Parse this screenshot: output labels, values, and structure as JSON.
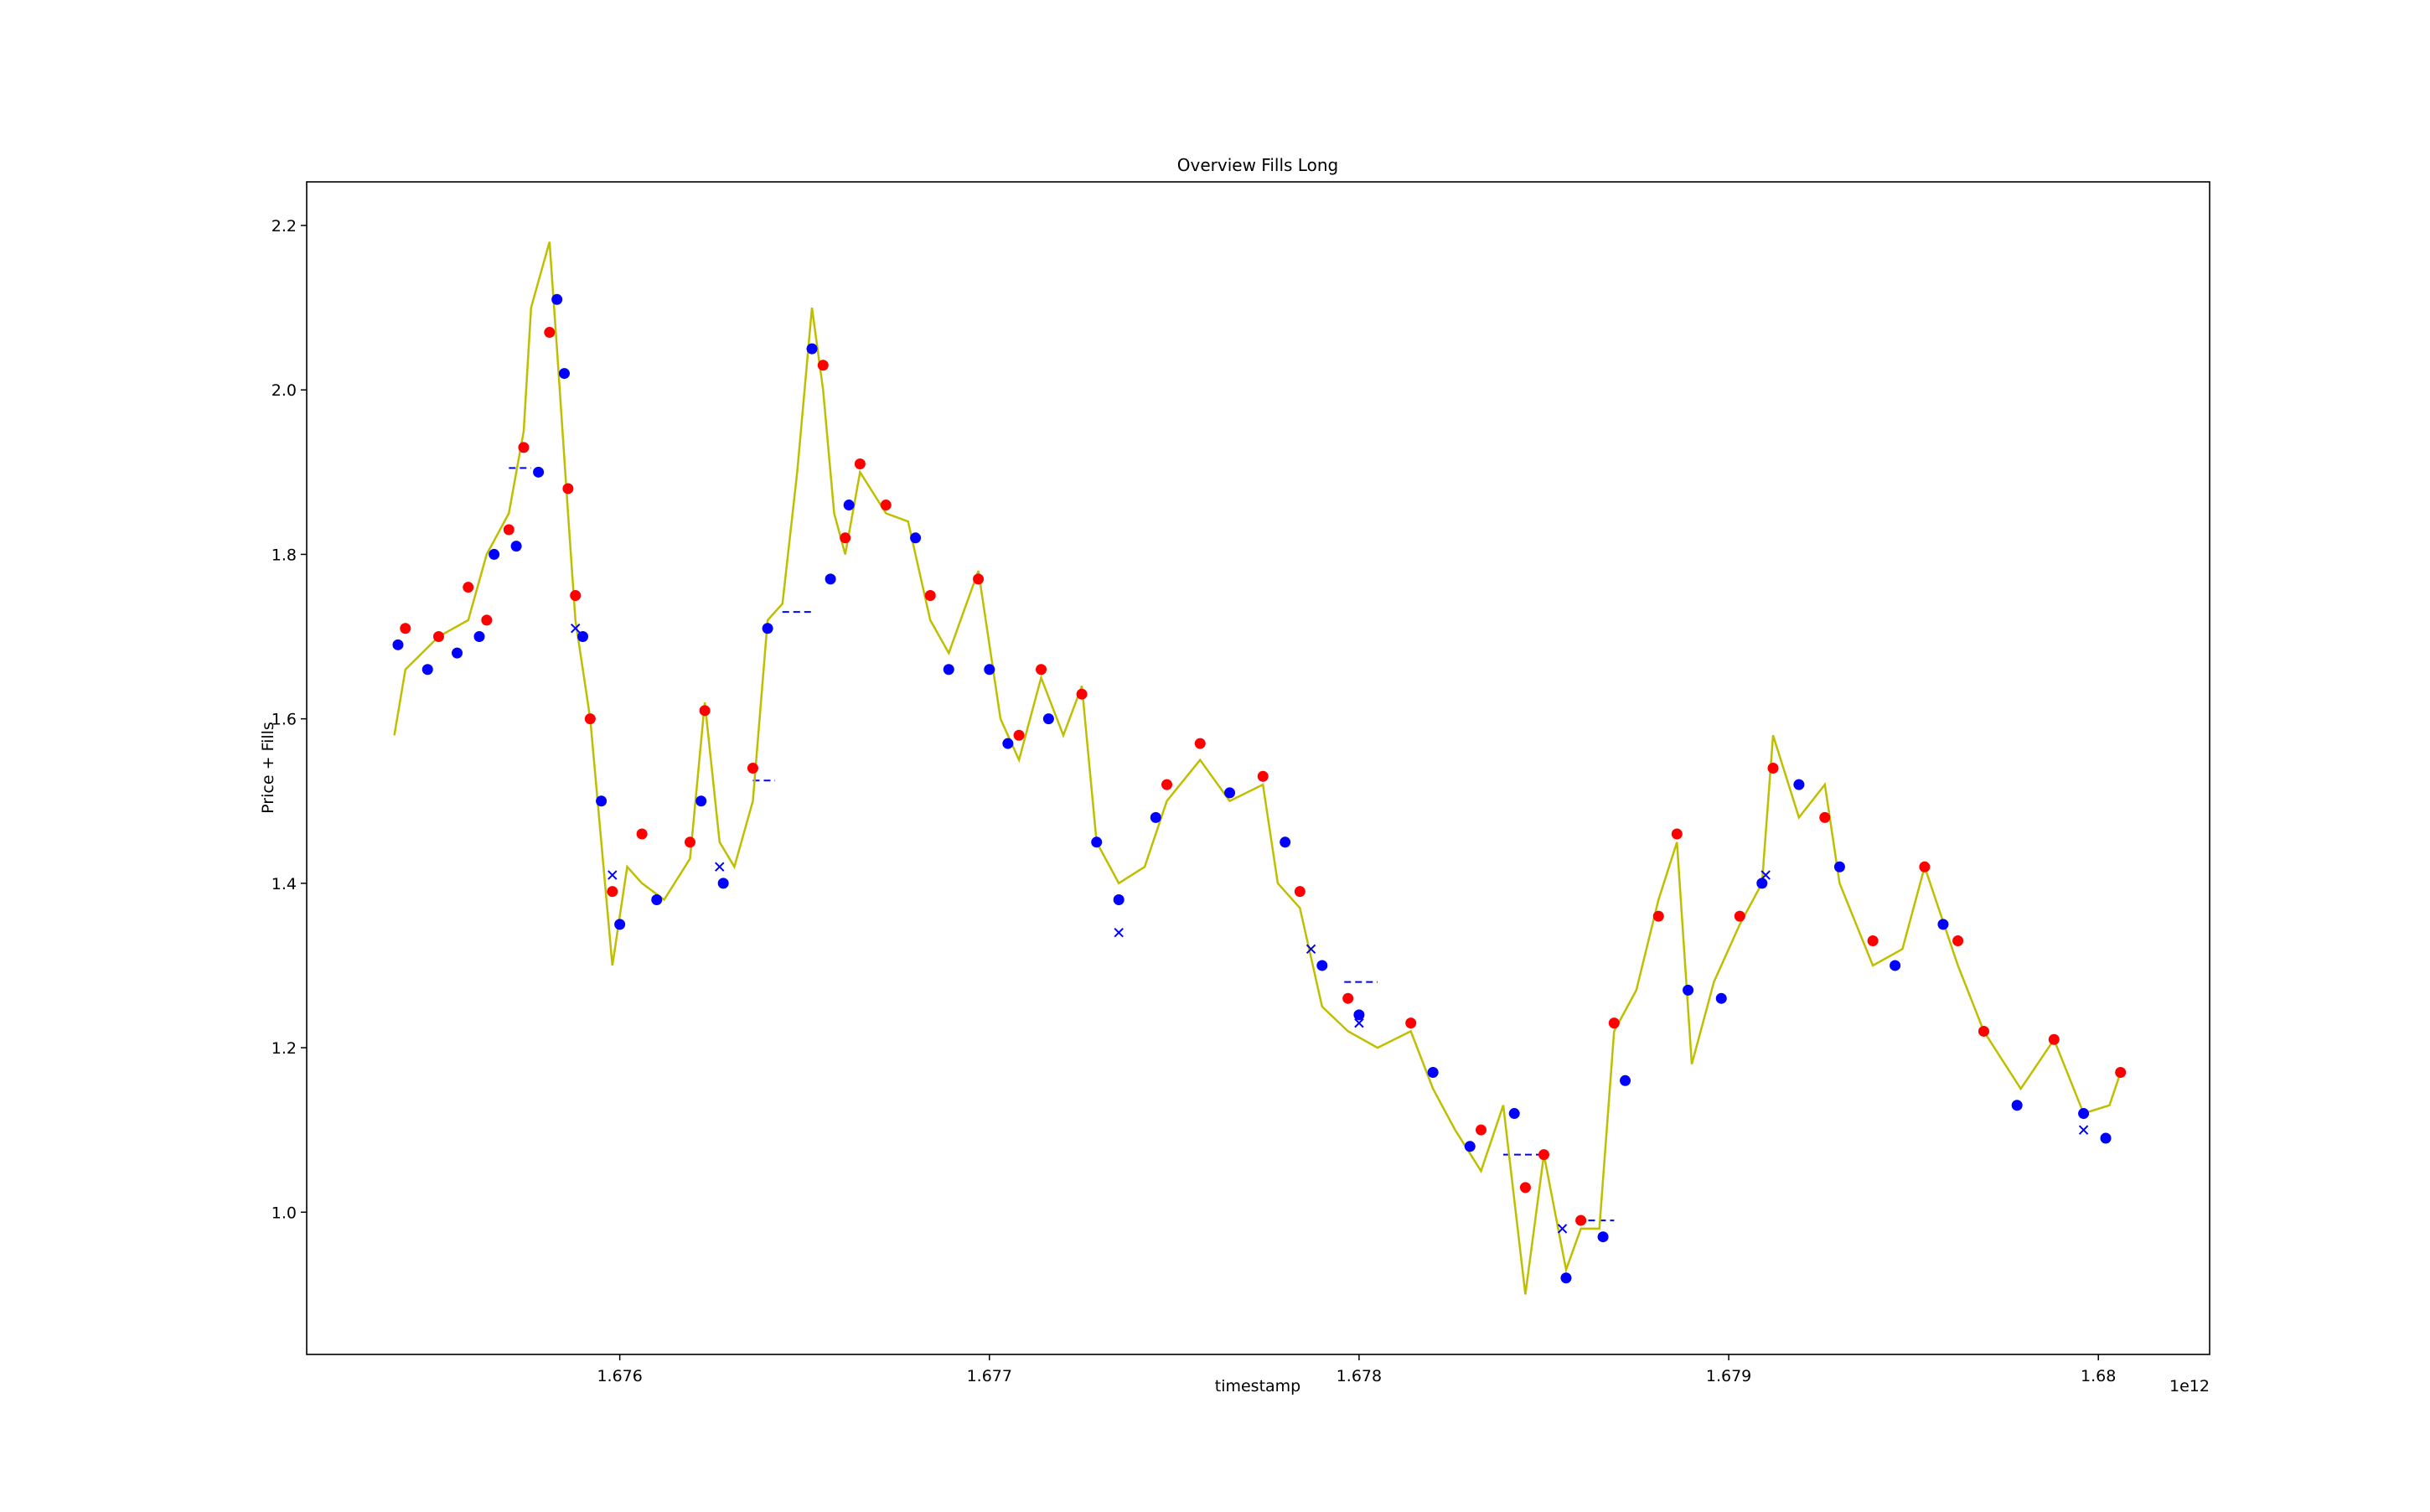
{
  "chart_data": {
    "type": "scatter-line",
    "title": "Overview Fills Long",
    "x_label": "timestamp",
    "y_label": "Price + Fills",
    "x_offset_label": "1e12",
    "xlim": [
      1.675153,
      1.680301
    ],
    "ylim": [
      0.827,
      2.253
    ],
    "xticks": [
      1.676,
      1.677,
      1.678,
      1.679,
      1.68
    ],
    "yticks": [
      {
        "value": 1,
        "label": "1.0"
      },
      1.2,
      1.4,
      1.6,
      1.8,
      {
        "value": 2,
        "label": "2.0"
      },
      2.2
    ],
    "series": [
      {
        "kind": "line",
        "color": "#bfbf00",
        "x": [
          1.67539,
          1.67542,
          1.67551,
          1.67559,
          1.67564,
          1.6757,
          1.67574,
          1.67576,
          1.67581,
          1.67583,
          1.67586,
          1.67588,
          1.67592,
          1.67595,
          1.67598,
          1.67602,
          1.67606,
          1.67612,
          1.67619,
          1.67623,
          1.67627,
          1.67631,
          1.67636,
          1.6764,
          1.67644,
          1.67648,
          1.67652,
          1.67655,
          1.67658,
          1.67661,
          1.67665,
          1.67672,
          1.67678,
          1.67684,
          1.67689,
          1.67693,
          1.67697,
          1.67703,
          1.67708,
          1.67714,
          1.6772,
          1.67725,
          1.67729,
          1.67735,
          1.67742,
          1.67748,
          1.67757,
          1.67765,
          1.67774,
          1.67778,
          1.67784,
          1.6779,
          1.67797,
          1.67805,
          1.67814,
          1.6782,
          1.67826,
          1.67833,
          1.67839,
          1.67845,
          1.6785,
          1.67856,
          1.6786,
          1.67865,
          1.67869,
          1.67875,
          1.67881,
          1.67886,
          1.6789,
          1.67896,
          1.67903,
          1.67909,
          1.67912,
          1.67919,
          1.67926,
          1.6793,
          1.67939,
          1.67947,
          1.67953,
          1.67962,
          1.67969,
          1.67979,
          1.67988,
          1.67996,
          1.68003,
          1.68006
        ],
        "values": [
          1.58,
          1.66,
          1.7,
          1.72,
          1.8,
          1.85,
          1.95,
          2.1,
          2.18,
          2.05,
          1.85,
          1.72,
          1.6,
          1.45,
          1.3,
          1.42,
          1.4,
          1.38,
          1.43,
          1.62,
          1.45,
          1.42,
          1.5,
          1.72,
          1.74,
          1.9,
          2.1,
          2,
          1.85,
          1.8,
          1.9,
          1.85,
          1.84,
          1.72,
          1.68,
          1.73,
          1.78,
          1.6,
          1.55,
          1.65,
          1.58,
          1.64,
          1.45,
          1.4,
          1.42,
          1.5,
          1.55,
          1.5,
          1.52,
          1.4,
          1.37,
          1.25,
          1.22,
          1.2,
          1.22,
          1.15,
          1.1,
          1.05,
          1.13,
          0.9,
          1.07,
          0.93,
          0.98,
          0.98,
          1.22,
          1.27,
          1.38,
          1.45,
          1.18,
          1.28,
          1.35,
          1.4,
          1.58,
          1.48,
          1.52,
          1.4,
          1.3,
          1.32,
          1.42,
          1.3,
          1.22,
          1.15,
          1.21,
          1.12,
          1.13,
          1.17
        ]
      },
      {
        "kind": "dot",
        "color": "#ff0000",
        "x": [
          1.67542,
          1.67551,
          1.67559,
          1.67564,
          1.6757,
          1.67574,
          1.67581,
          1.67586,
          1.67588,
          1.67592,
          1.67598,
          1.67606,
          1.67619,
          1.67623,
          1.67636,
          1.67655,
          1.67661,
          1.67665,
          1.67672,
          1.67684,
          1.67697,
          1.67708,
          1.67714,
          1.67725,
          1.67748,
          1.67757,
          1.67774,
          1.67784,
          1.67797,
          1.67814,
          1.67833,
          1.67845,
          1.6785,
          1.6786,
          1.67869,
          1.67881,
          1.67886,
          1.67903,
          1.67912,
          1.67926,
          1.67939,
          1.67953,
          1.67962,
          1.67969,
          1.67988,
          1.68006
        ],
        "values": [
          1.71,
          1.7,
          1.76,
          1.72,
          1.83,
          1.93,
          2.07,
          1.88,
          1.75,
          1.6,
          1.39,
          1.46,
          1.45,
          1.61,
          1.54,
          2.03,
          1.82,
          1.91,
          1.86,
          1.75,
          1.77,
          1.58,
          1.66,
          1.63,
          1.52,
          1.57,
          1.53,
          1.39,
          1.26,
          1.23,
          1.1,
          1.03,
          1.07,
          0.99,
          1.23,
          1.36,
          1.46,
          1.36,
          1.54,
          1.48,
          1.33,
          1.42,
          1.33,
          1.22,
          1.21,
          1.17
        ]
      },
      {
        "kind": "dot",
        "color": "#0000ff",
        "x": [
          1.6754,
          1.67548,
          1.67556,
          1.67562,
          1.67566,
          1.67572,
          1.67578,
          1.67583,
          1.67585,
          1.6759,
          1.67595,
          1.676,
          1.6761,
          1.67622,
          1.67628,
          1.6764,
          1.67652,
          1.67657,
          1.67662,
          1.6768,
          1.67689,
          1.677,
          1.67705,
          1.67716,
          1.67729,
          1.67735,
          1.67745,
          1.67765,
          1.6778,
          1.6779,
          1.678,
          1.6782,
          1.6783,
          1.67842,
          1.67856,
          1.67866,
          1.67872,
          1.67889,
          1.67898,
          1.67909,
          1.67919,
          1.6793,
          1.67945,
          1.67958,
          1.67978,
          1.67996,
          1.68002
        ],
        "values": [
          1.69,
          1.66,
          1.68,
          1.7,
          1.8,
          1.81,
          1.9,
          2.11,
          2.02,
          1.7,
          1.5,
          1.35,
          1.38,
          1.5,
          1.4,
          1.71,
          2.05,
          1.77,
          1.86,
          1.82,
          1.66,
          1.66,
          1.57,
          1.6,
          1.45,
          1.38,
          1.48,
          1.51,
          1.45,
          1.3,
          1.24,
          1.17,
          1.08,
          1.12,
          0.92,
          0.97,
          1.16,
          1.27,
          1.26,
          1.4,
          1.52,
          1.42,
          1.3,
          1.35,
          1.13,
          1.12,
          1.09
        ]
      },
      {
        "kind": "cross",
        "color": "#0000ff",
        "x": [
          1.67588,
          1.67598,
          1.67627,
          1.67735,
          1.67787,
          1.678,
          1.67855,
          1.6791,
          1.67996
        ],
        "values": [
          1.71,
          1.41,
          1.42,
          1.34,
          1.32,
          1.23,
          0.98,
          1.41,
          1.1
        ]
      }
    ],
    "segments": [
      {
        "x": [
          1.6757,
          1.67576
        ],
        "y": 1.905
      },
      {
        "x": [
          1.67644,
          1.67652
        ],
        "y": 1.73
      },
      {
        "x": [
          1.67636,
          1.67642
        ],
        "y": 1.525
      },
      {
        "x": [
          1.67839,
          1.6785
        ],
        "y": 1.07
      },
      {
        "x": [
          1.67862,
          1.67869
        ],
        "y": 0.99
      },
      {
        "x": [
          1.67796,
          1.67805
        ],
        "y": 1.28
      }
    ],
    "segment_color": "#0000ff"
  }
}
